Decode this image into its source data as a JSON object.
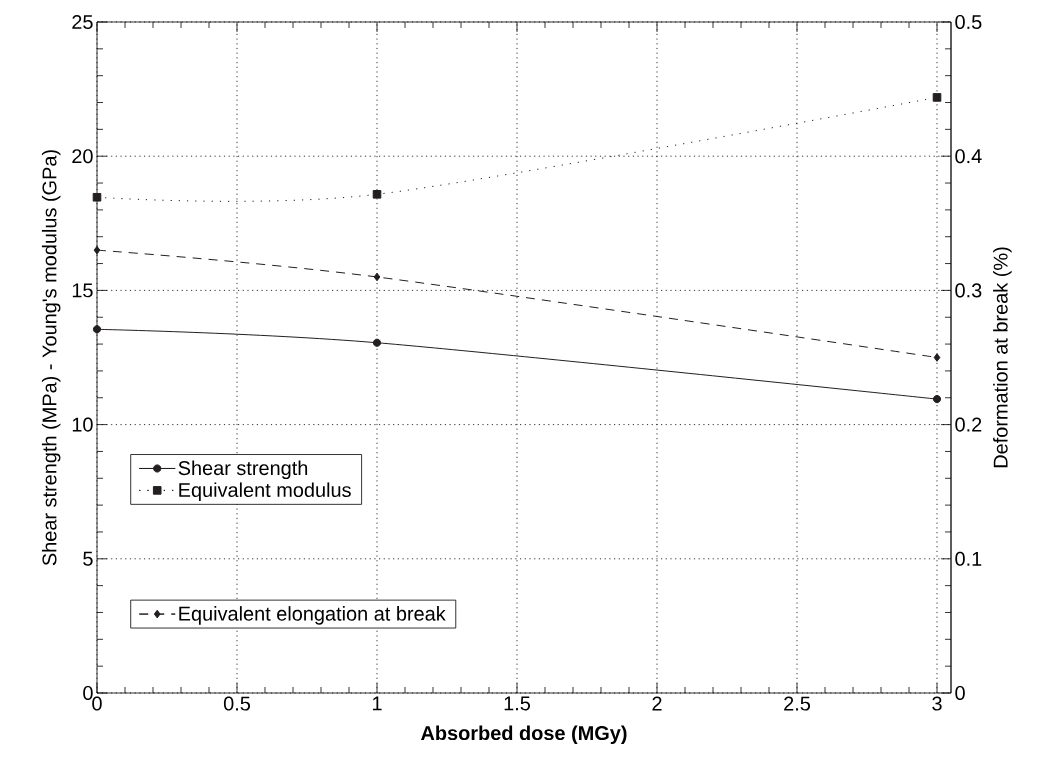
{
  "chart_data": {
    "type": "line",
    "xlabel": "Absorbed dose (MGy)",
    "ylabel": "Shear strength (MPa) - Young's modulus (GPa)",
    "y2label": "Deformation at break (%)",
    "x": [
      0,
      1,
      3
    ],
    "series": [
      {
        "name": "Shear strength",
        "color": "#231f20",
        "values": [
          13.55,
          13.05,
          10.95
        ],
        "marker": "circle",
        "line_style": "solid"
      },
      {
        "name": "Equivalent modulus",
        "color": "#231f20",
        "values": [
          18.47,
          18.58,
          22.19
        ],
        "marker": "square",
        "line_style": "dotted"
      },
      {
        "name": "Equivalent elongation at break",
        "color": "#231f20",
        "values": [
          0.33,
          0.31,
          0.25
        ],
        "marker": "diamond",
        "line_style": "dashed",
        "axis": "y2"
      }
    ],
    "xlim": [
      0,
      3.05
    ],
    "xticks": [
      0,
      0.5,
      1,
      1.5,
      2,
      2.5,
      3
    ],
    "ylim": [
      0,
      25
    ],
    "yticks": [
      0,
      5,
      10,
      15,
      20,
      25
    ],
    "y2lim": [
      0,
      0.5
    ],
    "y2ticks": [
      0,
      0.1,
      0.2,
      0.3,
      0.4,
      0.5
    ],
    "grid": true,
    "legend": "left"
  }
}
